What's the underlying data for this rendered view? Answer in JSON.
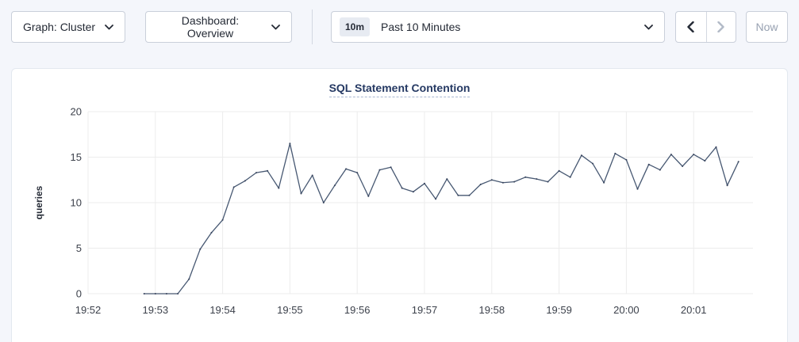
{
  "toolbar": {
    "graph_dropdown": {
      "label": "Graph: Cluster"
    },
    "dashboard_dropdown": {
      "label": "Dashboard: Overview"
    },
    "time_range": {
      "badge": "10m",
      "label": "Past 10 Minutes"
    },
    "now_button": "Now"
  },
  "colors": {
    "page_bg": "#f4f6fb",
    "line": "#475872",
    "point": "#39455e",
    "grid": "#ececec",
    "title": "#253963",
    "text": "#242a35",
    "disabled": "#b2bac7",
    "badge_bg": "#e7ebf2",
    "control_border": "#c9cfda",
    "card_border": "#e3e8ef"
  },
  "chart_data": {
    "type": "line",
    "title": "SQL Statement Contention",
    "xlabel": "",
    "ylabel": "queries",
    "ylim": [
      0,
      20
    ],
    "y_ticks": [
      0,
      5,
      10,
      15,
      20
    ],
    "x_ticks": [
      "19:52",
      "19:53",
      "19:54",
      "19:55",
      "19:56",
      "19:57",
      "19:58",
      "19:59",
      "20:00",
      "20:01"
    ],
    "x_start": "19:52:00",
    "grid": true,
    "legend": "none",
    "series": [
      {
        "name": "queries",
        "color": "#475872",
        "points": [
          [
            "19:52:50",
            0
          ],
          [
            "19:53:00",
            0
          ],
          [
            "19:53:10",
            0
          ],
          [
            "19:53:20",
            0
          ],
          [
            "19:53:30",
            1.6
          ],
          [
            "19:53:40",
            4.9
          ],
          [
            "19:53:50",
            6.7
          ],
          [
            "19:54:00",
            8.1
          ],
          [
            "19:54:10",
            11.7
          ],
          [
            "19:54:20",
            12.4
          ],
          [
            "19:54:30",
            13.3
          ],
          [
            "19:54:40",
            13.5
          ],
          [
            "19:54:50",
            11.6
          ],
          [
            "19:55:00",
            16.5
          ],
          [
            "19:55:10",
            11.0
          ],
          [
            "19:55:20",
            13.0
          ],
          [
            "19:55:30",
            10.0
          ],
          [
            "19:55:40",
            11.9
          ],
          [
            "19:55:50",
            13.7
          ],
          [
            "19:56:00",
            13.3
          ],
          [
            "19:56:10",
            10.7
          ],
          [
            "19:56:20",
            13.6
          ],
          [
            "19:56:30",
            13.9
          ],
          [
            "19:56:40",
            11.6
          ],
          [
            "19:56:50",
            11.2
          ],
          [
            "19:57:00",
            12.1
          ],
          [
            "19:57:10",
            10.4
          ],
          [
            "19:57:20",
            12.6
          ],
          [
            "19:57:30",
            10.8
          ],
          [
            "19:57:40",
            10.8
          ],
          [
            "19:57:50",
            12.0
          ],
          [
            "19:58:00",
            12.5
          ],
          [
            "19:58:10",
            12.2
          ],
          [
            "19:58:20",
            12.3
          ],
          [
            "19:58:30",
            12.8
          ],
          [
            "19:58:40",
            12.6
          ],
          [
            "19:58:50",
            12.3
          ],
          [
            "19:59:00",
            13.5
          ],
          [
            "19:59:10",
            12.8
          ],
          [
            "19:59:20",
            15.2
          ],
          [
            "19:59:30",
            14.3
          ],
          [
            "19:59:40",
            12.2
          ],
          [
            "19:59:50",
            15.4
          ],
          [
            "20:00:00",
            14.7
          ],
          [
            "20:00:10",
            11.5
          ],
          [
            "20:00:20",
            14.2
          ],
          [
            "20:00:30",
            13.6
          ],
          [
            "20:00:40",
            15.3
          ],
          [
            "20:00:50",
            14.0
          ],
          [
            "20:01:00",
            15.3
          ],
          [
            "20:01:10",
            14.6
          ],
          [
            "20:01:20",
            16.1
          ],
          [
            "20:01:30",
            11.9
          ],
          [
            "20:01:40",
            14.5
          ]
        ]
      }
    ]
  }
}
